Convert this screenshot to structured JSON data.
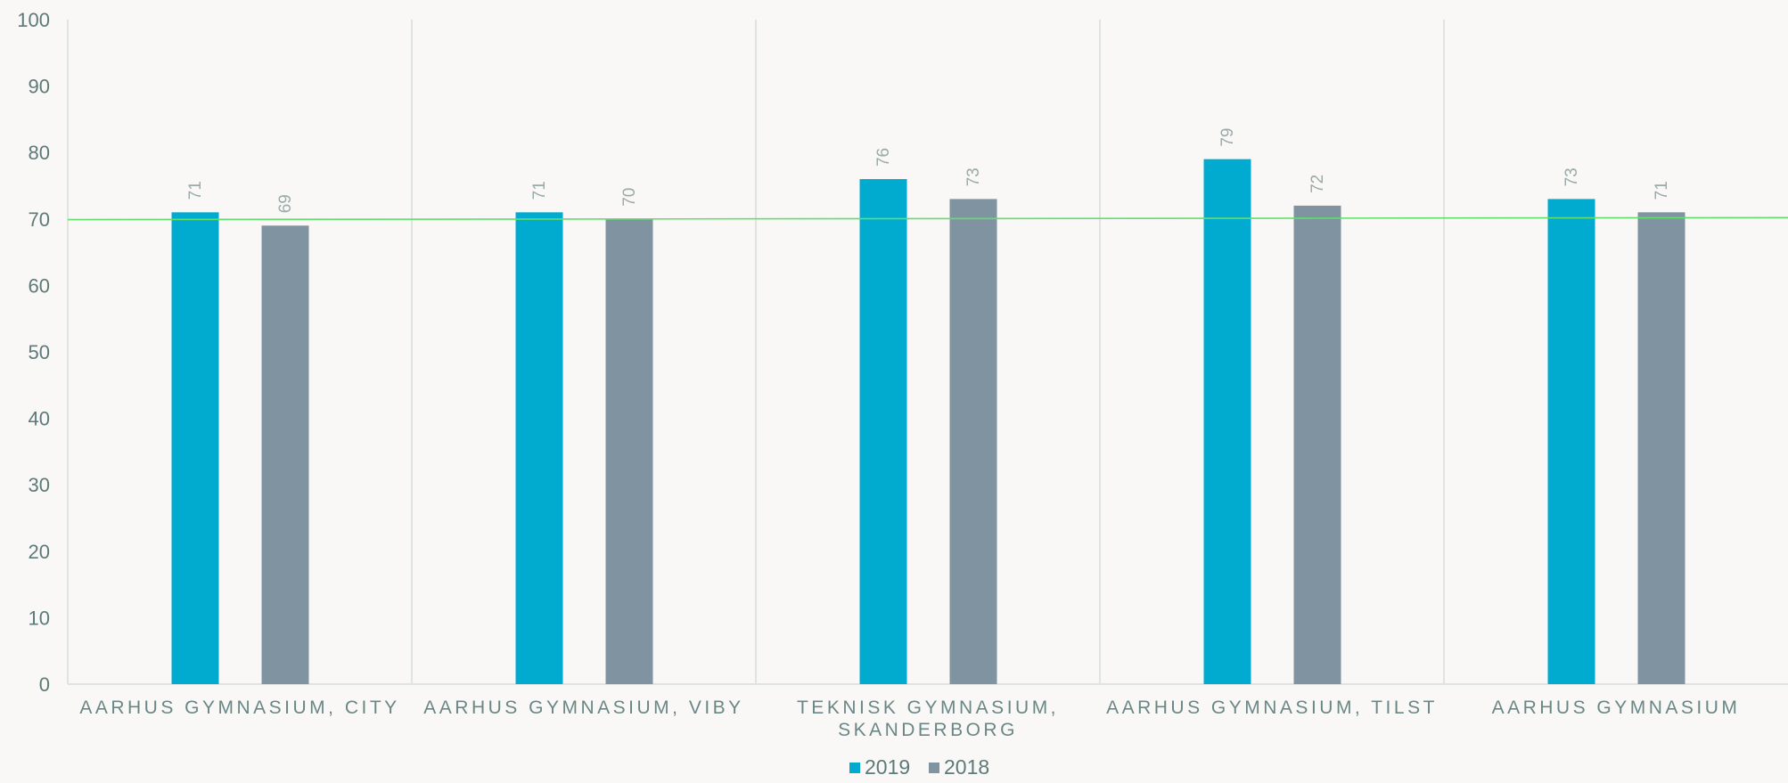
{
  "chart_data": {
    "type": "bar",
    "categories": [
      [
        "AARHUS GYMNASIUM, CITY"
      ],
      [
        "AARHUS GYMNASIUM, VIBY"
      ],
      [
        "TEKNISK GYMNASIUM,",
        "SKANDERBORG"
      ],
      [
        "AARHUS GYMNASIUM, TILST"
      ],
      [
        "AARHUS GYMNASIUM"
      ]
    ],
    "series": [
      {
        "name": "2019",
        "color": "#00abcf",
        "values": [
          71,
          71,
          76,
          79,
          73
        ]
      },
      {
        "name": "2018",
        "color": "#8093a0",
        "values": [
          69,
          70,
          73,
          72,
          71
        ]
      }
    ],
    "ylim": [
      0,
      100
    ],
    "yticks": [
      0,
      10,
      20,
      30,
      40,
      50,
      60,
      70,
      80,
      90,
      100
    ],
    "reference_line": {
      "from": 69.9,
      "to": 70.2,
      "color": "#5fe06a"
    },
    "data_labels": true,
    "grid": "vertical separators",
    "legend": "bottom-center",
    "title": "",
    "xlabel": "",
    "ylabel": ""
  }
}
